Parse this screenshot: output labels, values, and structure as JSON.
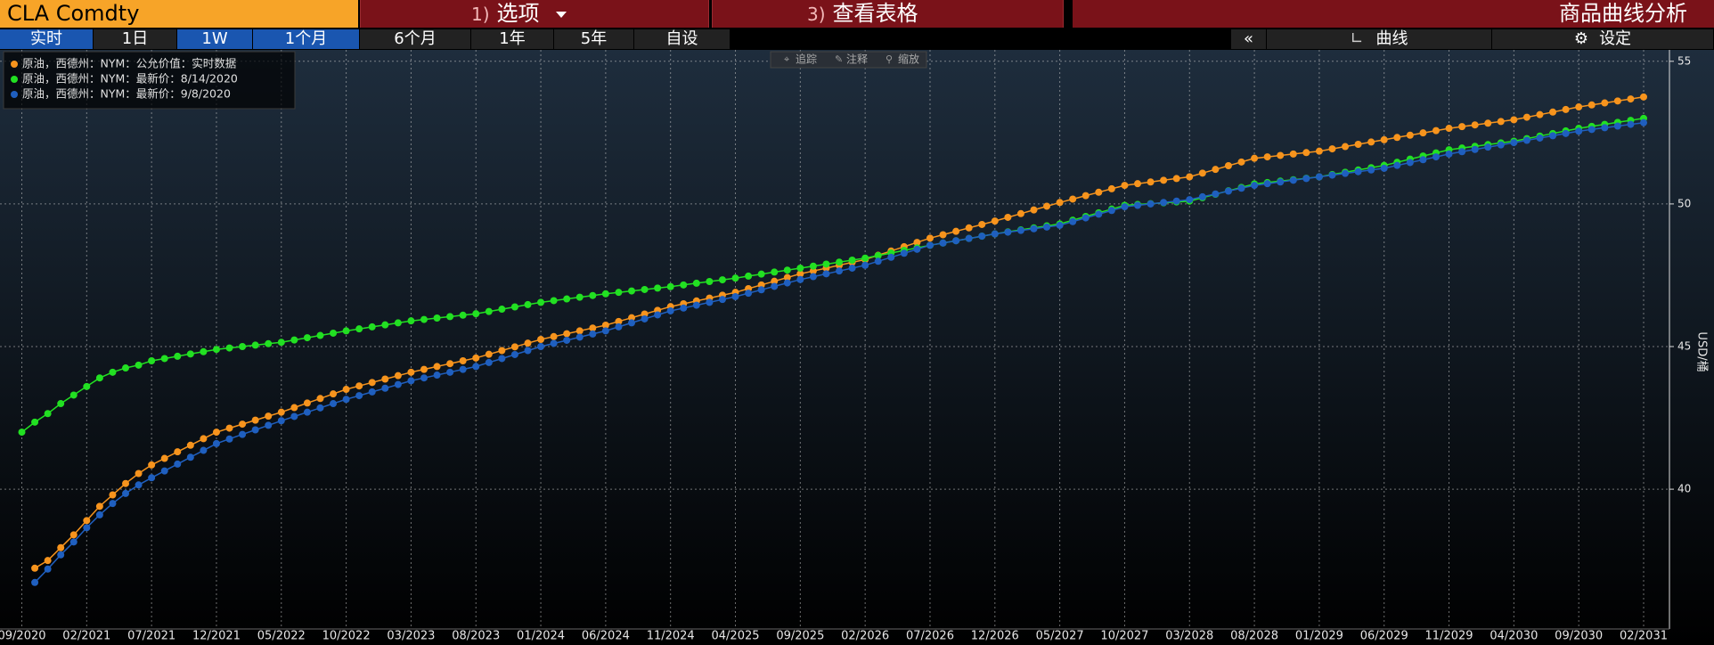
{
  "toolbar": {
    "security": "CLA Comdty",
    "menu": [
      {
        "key": "1)",
        "label": "选项"
      },
      {
        "key": "3)",
        "label": "查看表格"
      }
    ],
    "function": "商品曲线分析",
    "ranges": [
      "实时",
      "1日",
      "1W",
      "1个月",
      "6个月",
      "1年",
      "5年",
      "自设"
    ],
    "collapse": "«",
    "curve": "曲线",
    "settings": "设定"
  },
  "chart_tools": [
    "追踪",
    "注释",
    "缩放"
  ],
  "chart_data": {
    "type": "line",
    "markers": true,
    "grid": true,
    "legend": "top-left",
    "y_axis_label": "USD/桶",
    "y_axis_side": "right",
    "categories": [
      "09/2020",
      null,
      null,
      null,
      null,
      "02/2021",
      null,
      null,
      null,
      null,
      "07/2021",
      null,
      null,
      null,
      null,
      "12/2021",
      null,
      null,
      null,
      null,
      "05/2022",
      null,
      null,
      null,
      null,
      "10/2022",
      null,
      null,
      null,
      null,
      "03/2023",
      null,
      null,
      null,
      null,
      "08/2023",
      null,
      null,
      null,
      null,
      "01/2024",
      null,
      null,
      null,
      null,
      "06/2024",
      null,
      null,
      null,
      null,
      "11/2024",
      null,
      null,
      null,
      null,
      "04/2025",
      null,
      null,
      null,
      null,
      "09/2025",
      null,
      null,
      null,
      null,
      "02/2026",
      null,
      null,
      null,
      null,
      "07/2026",
      null,
      null,
      null,
      null,
      "12/2026",
      null,
      null,
      null,
      null,
      "05/2027",
      null,
      null,
      null,
      null,
      "10/2027",
      null,
      null,
      null,
      null,
      "03/2028",
      null,
      null,
      null,
      null,
      "08/2028",
      null,
      null,
      null,
      null,
      "01/2029",
      null,
      null,
      null,
      null,
      "06/2029",
      null,
      null,
      null,
      null,
      "11/2029",
      null,
      null,
      null,
      null,
      "04/2030",
      null,
      null,
      null,
      null,
      "09/2030",
      null,
      null,
      null,
      null,
      "02/2031"
    ],
    "ylim": [
      35.1,
      55.4
    ],
    "yticks": [
      40,
      45,
      50,
      55
    ],
    "series": [
      {
        "name": "原油，西德州：NYM：公允价值：实时数据",
        "color": "#f7941d",
        "values": [
          null,
          37.23,
          37.5,
          37.95,
          38.4,
          38.9,
          39.4,
          39.8,
          40.2,
          40.55,
          40.85,
          41.08,
          41.31,
          41.54,
          41.77,
          42.0,
          42.14,
          42.28,
          42.42,
          42.56,
          42.7,
          42.86,
          43.02,
          43.18,
          43.34,
          43.5,
          43.62,
          43.74,
          43.86,
          43.98,
          44.1,
          44.2,
          44.3,
          44.4,
          44.5,
          44.6,
          44.73,
          44.86,
          44.99,
          45.12,
          45.25,
          45.35,
          45.45,
          45.55,
          45.65,
          45.75,
          45.88,
          46.01,
          46.14,
          46.27,
          46.4,
          46.5,
          46.6,
          46.7,
          46.8,
          46.9,
          47.03,
          47.16,
          47.29,
          47.42,
          47.55,
          47.65,
          47.75,
          47.85,
          47.95,
          48.05,
          48.2,
          48.35,
          48.5,
          48.65,
          48.8,
          48.92,
          49.04,
          49.16,
          49.28,
          49.4,
          49.53,
          49.66,
          49.79,
          49.92,
          50.05,
          50.17,
          50.29,
          50.41,
          50.53,
          50.65,
          50.71,
          50.77,
          50.83,
          50.89,
          50.95,
          51.08,
          51.21,
          51.34,
          51.47,
          51.6,
          51.65,
          51.7,
          51.75,
          51.8,
          51.85,
          51.93,
          52.01,
          52.09,
          52.17,
          52.25,
          52.33,
          52.41,
          52.49,
          52.57,
          52.65,
          52.71,
          52.77,
          52.83,
          52.89,
          52.95,
          53.04,
          53.13,
          53.22,
          53.31,
          53.4,
          53.47,
          53.54,
          53.61,
          53.68,
          53.75
        ]
      },
      {
        "name": "原油，西德州：NYM：最新价：8/14/2020",
        "color": "#22e022",
        "values": [
          42.0,
          42.35,
          42.65,
          43.0,
          43.3,
          43.6,
          43.9,
          44.1,
          44.25,
          44.35,
          44.5,
          44.58,
          44.66,
          44.74,
          44.82,
          44.9,
          44.95,
          45.0,
          45.05,
          45.1,
          45.15,
          45.23,
          45.31,
          45.39,
          45.47,
          45.55,
          45.62,
          45.69,
          45.76,
          45.83,
          45.9,
          45.95,
          46.0,
          46.05,
          46.1,
          46.15,
          46.23,
          46.31,
          46.39,
          46.47,
          46.55,
          46.61,
          46.67,
          46.73,
          46.79,
          46.85,
          46.9,
          46.95,
          47.0,
          47.05,
          47.1,
          47.16,
          47.22,
          47.28,
          47.34,
          47.4,
          47.47,
          47.54,
          47.61,
          47.68,
          47.75,
          47.82,
          47.89,
          47.96,
          48.03,
          48.1,
          48.19,
          48.28,
          48.37,
          48.46,
          48.55,
          48.63,
          48.71,
          48.79,
          48.87,
          48.95,
          49.02,
          49.09,
          49.16,
          49.23,
          49.3,
          49.43,
          49.56,
          49.69,
          49.82,
          49.95,
          49.98,
          50.01,
          50.04,
          50.07,
          50.1,
          50.22,
          50.34,
          50.46,
          50.58,
          50.7,
          50.75,
          50.8,
          50.85,
          50.9,
          50.95,
          51.03,
          51.11,
          51.19,
          51.27,
          51.35,
          51.46,
          51.57,
          51.68,
          51.79,
          51.9,
          51.96,
          52.02,
          52.08,
          52.14,
          52.2,
          52.29,
          52.38,
          52.47,
          52.56,
          52.65,
          52.72,
          52.79,
          52.86,
          52.93,
          53.0
        ]
      },
      {
        "name": "原油，西德州：NYM：最新价：9/8/2020",
        "color": "#1f5fbf",
        "values": [
          null,
          36.73,
          37.2,
          37.7,
          38.15,
          38.65,
          39.1,
          39.5,
          39.85,
          40.15,
          40.4,
          40.64,
          40.88,
          41.12,
          41.36,
          41.6,
          41.76,
          41.92,
          42.08,
          42.24,
          42.4,
          42.55,
          42.7,
          42.85,
          43.0,
          43.15,
          43.28,
          43.41,
          43.54,
          43.67,
          43.8,
          43.9,
          44.0,
          44.1,
          44.2,
          44.3,
          44.44,
          44.58,
          44.72,
          44.86,
          45.0,
          45.11,
          45.22,
          45.33,
          45.44,
          45.55,
          45.69,
          45.83,
          45.97,
          46.11,
          46.25,
          46.35,
          46.45,
          46.55,
          46.65,
          46.75,
          46.87,
          46.99,
          47.11,
          47.23,
          47.35,
          47.45,
          47.55,
          47.65,
          47.75,
          47.85,
          47.99,
          48.13,
          48.27,
          48.41,
          48.55,
          48.63,
          48.71,
          48.79,
          48.87,
          48.95,
          49.01,
          49.07,
          49.13,
          49.19,
          49.25,
          49.38,
          49.51,
          49.64,
          49.77,
          49.9,
          49.95,
          50.0,
          50.05,
          50.1,
          50.15,
          50.25,
          50.35,
          50.45,
          50.55,
          50.65,
          50.71,
          50.77,
          50.83,
          50.89,
          50.95,
          51.01,
          51.07,
          51.13,
          51.19,
          51.25,
          51.35,
          51.45,
          51.55,
          51.65,
          51.75,
          51.83,
          51.91,
          51.99,
          52.07,
          52.15,
          52.23,
          52.31,
          52.39,
          52.47,
          52.55,
          52.61,
          52.67,
          52.73,
          52.79,
          52.85
        ]
      }
    ]
  }
}
